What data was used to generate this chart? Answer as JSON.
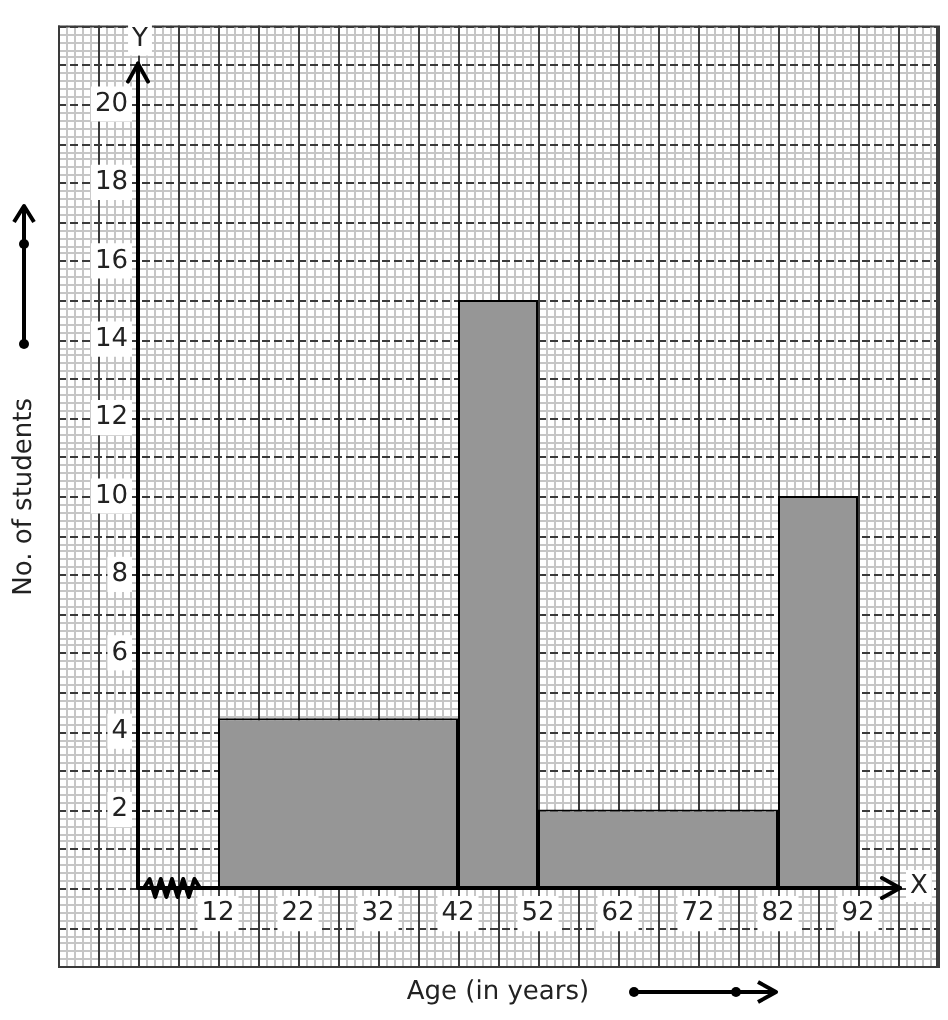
{
  "chart_data": {
    "type": "histogram",
    "xlabel": "Age (in years)",
    "ylabel": "No. of students",
    "bins": [
      12,
      42,
      52,
      82,
      92
    ],
    "values": [
      4.33,
      15,
      2,
      10
    ],
    "color": "#969696",
    "xlim": [
      2,
      102
    ],
    "ylim": [
      0,
      22
    ],
    "xticks": [
      {
        "value": 7,
        "label": null
      },
      12,
      {
        "value": 17,
        "label": null
      },
      22,
      {
        "value": 27,
        "label": null
      },
      32,
      {
        "value": 37,
        "label": null
      },
      42,
      {
        "value": 47,
        "label": null
      },
      52,
      {
        "value": 57,
        "label": null
      },
      62,
      {
        "value": 67,
        "label": null
      },
      72,
      {
        "value": 77,
        "label": null
      },
      82,
      {
        "value": 87,
        "label": null
      },
      92,
      {
        "value": 97,
        "label": null
      }
    ],
    "yticks": [
      {
        "value": 1,
        "label": null
      },
      2,
      {
        "value": 3,
        "label": null
      },
      4,
      {
        "value": 5,
        "label": null
      },
      6,
      {
        "value": 7,
        "label": null
      },
      8,
      {
        "value": 9,
        "label": null
      },
      10,
      {
        "value": 11,
        "label": null
      },
      12,
      {
        "value": 13,
        "label": null
      },
      14,
      {
        "value": 15,
        "label": null
      },
      16,
      {
        "value": 17,
        "label": null
      },
      18,
      {
        "value": 19,
        "label": null
      },
      20,
      {
        "value": 21,
        "label": null
      }
    ],
    "grid": true,
    "annotations": [
      "X",
      "Y"
    ]
  }
}
